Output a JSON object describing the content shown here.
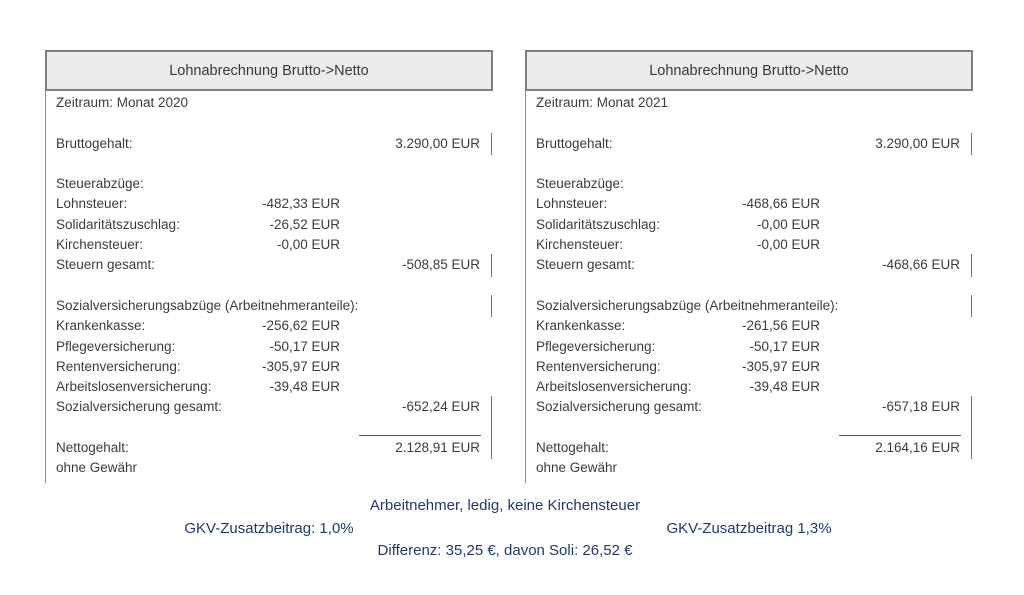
{
  "colors": {
    "header_bg": "#ebebeb",
    "panel_border": "#7f7f7f",
    "body_text": "#3c3c3c",
    "note_blue": "#1f3a67"
  },
  "panels": [
    {
      "title": "Lohnabrechnung Brutto->Netto",
      "rows": [
        {
          "label": "Zeitraum: Monat 2020"
        },
        {
          "type": "blank"
        },
        {
          "label": "Bruttogehalt:",
          "total": "3.290,00 EUR",
          "tick": true
        },
        {
          "type": "blank"
        },
        {
          "label": "Steuerabzüge:"
        },
        {
          "label": "Lohnsteuer:",
          "mid": "-482,33 EUR"
        },
        {
          "label": "Solidaritätszuschlag:",
          "mid": "-26,52 EUR"
        },
        {
          "label": "Kirchensteuer:",
          "mid": "-0,00 EUR"
        },
        {
          "label": "Steuern gesamt:",
          "total": "-508,85 EUR",
          "tick": true
        },
        {
          "type": "blank"
        },
        {
          "label": "Sozialversicherungsabzüge (Arbeitnehmeranteile):",
          "tick": true
        },
        {
          "label": "Krankenkasse:",
          "mid": "-256,62 EUR"
        },
        {
          "label": "Pflegeversicherung:",
          "mid": "-50,17 EUR"
        },
        {
          "label": "Rentenversicherung:",
          "mid": "-305,97 EUR"
        },
        {
          "label": "Arbeitslosenversicherung:",
          "mid": "-39,48 EUR"
        },
        {
          "label": "Sozialversicherung gesamt:",
          "total": "-652,24 EUR",
          "tick": true
        },
        {
          "type": "sumline",
          "tick": true
        },
        {
          "label": "Nettogehalt:",
          "total": "2.128,91 EUR",
          "tick": true
        },
        {
          "label": "ohne Gewähr"
        }
      ]
    },
    {
      "title": "Lohnabrechnung Brutto->Netto",
      "rows": [
        {
          "label": "Zeitraum: Monat 2021"
        },
        {
          "type": "blank"
        },
        {
          "label": "Bruttogehalt:",
          "total": "3.290,00 EUR",
          "tick": true
        },
        {
          "type": "blank"
        },
        {
          "label": "Steuerabzüge:"
        },
        {
          "label": "Lohnsteuer:",
          "mid": "-468,66 EUR"
        },
        {
          "label": "Solidaritätszuschlag:",
          "mid": "-0,00 EUR"
        },
        {
          "label": "Kirchensteuer:",
          "mid": "-0,00 EUR"
        },
        {
          "label": "Steuern gesamt:",
          "total": "-468,66 EUR",
          "tick": true
        },
        {
          "type": "blank"
        },
        {
          "label": "Sozialversicherungsabzüge (Arbeitnehmeranteile):",
          "tick": true
        },
        {
          "label": "Krankenkasse:",
          "mid": "-261,56 EUR"
        },
        {
          "label": "Pflegeversicherung:",
          "mid": "-50,17 EUR"
        },
        {
          "label": "Rentenversicherung:",
          "mid": "-305,97 EUR"
        },
        {
          "label": "Arbeitslosenversicherung:",
          "mid": "-39,48 EUR"
        },
        {
          "label": "Sozialversicherung gesamt:",
          "total": "-657,18 EUR",
          "tick": true
        },
        {
          "type": "sumline",
          "tick": true
        },
        {
          "label": "Nettogehalt:",
          "total": "2.164,16 EUR",
          "tick": true
        },
        {
          "label": "ohne Gewähr"
        }
      ]
    }
  ],
  "footer": {
    "line1": "Arbeitnehmer, ledig, keine Kirchensteuer",
    "line2_left": "GKV-Zusatzbeitrag: 1,0%",
    "line2_right": "GKV-Zusatzbeitrag 1,3%",
    "line3": "Differenz: 35,25 €, davon Soli: 26,52 €"
  }
}
